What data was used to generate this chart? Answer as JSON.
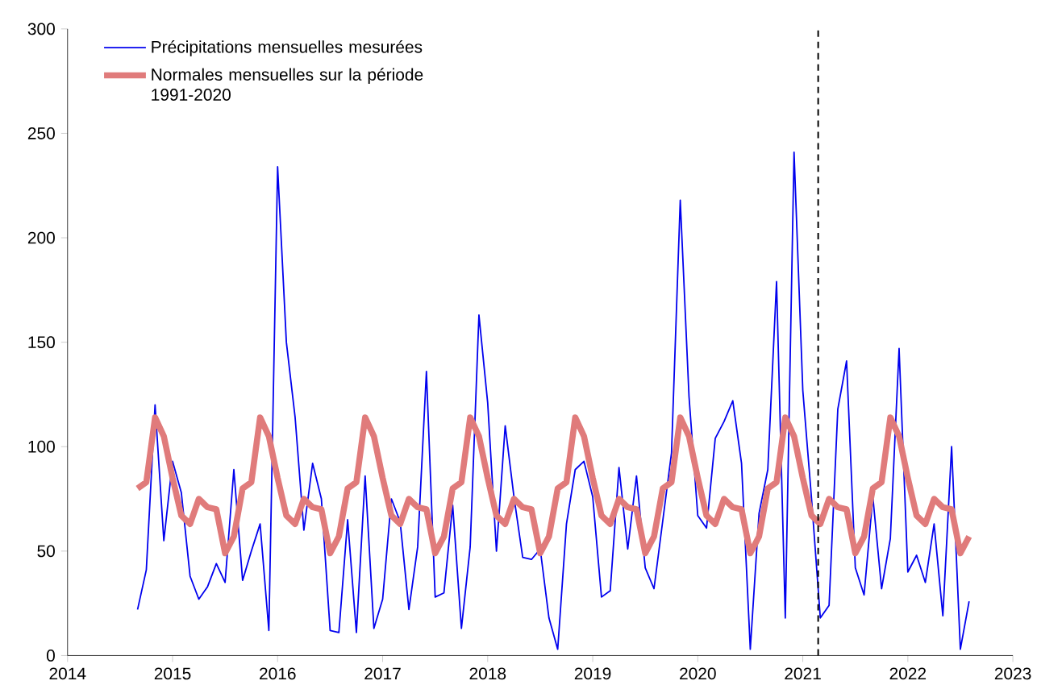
{
  "chart_data": {
    "type": "line",
    "x": [
      "2014-09",
      "2014-10",
      "2014-11",
      "2014-12",
      "2015-01",
      "2015-02",
      "2015-03",
      "2015-04",
      "2015-05",
      "2015-06",
      "2015-07",
      "2015-08",
      "2015-09",
      "2015-10",
      "2015-11",
      "2015-12",
      "2016-01",
      "2016-02",
      "2016-03",
      "2016-04",
      "2016-05",
      "2016-06",
      "2016-07",
      "2016-08",
      "2016-09",
      "2016-10",
      "2016-11",
      "2016-12",
      "2017-01",
      "2017-02",
      "2017-03",
      "2017-04",
      "2017-05",
      "2017-06",
      "2017-07",
      "2017-08",
      "2017-09",
      "2017-10",
      "2017-11",
      "2017-12",
      "2018-01",
      "2018-02",
      "2018-03",
      "2018-04",
      "2018-05",
      "2018-06",
      "2018-07",
      "2018-08",
      "2018-09",
      "2018-10",
      "2018-11",
      "2018-12",
      "2019-01",
      "2019-02",
      "2019-03",
      "2019-04",
      "2019-05",
      "2019-06",
      "2019-07",
      "2019-08",
      "2019-09",
      "2019-10",
      "2019-11",
      "2019-12",
      "2020-01",
      "2020-02",
      "2020-03",
      "2020-04",
      "2020-05",
      "2020-06",
      "2020-07",
      "2020-08",
      "2020-09",
      "2020-10",
      "2020-11",
      "2020-12",
      "2021-01",
      "2021-02",
      "2021-03",
      "2021-04",
      "2021-05",
      "2021-06",
      "2021-07",
      "2021-08",
      "2021-09",
      "2021-10",
      "2021-11",
      "2021-12",
      "2022-01",
      "2022-02",
      "2022-03",
      "2022-04",
      "2022-05",
      "2022-06",
      "2022-07",
      "2022-08"
    ],
    "series": [
      {
        "name": "Précipitations mensuelles mesurées",
        "color": "#0000ee",
        "values": [
          22,
          41,
          120,
          55,
          93,
          78,
          38,
          27,
          33,
          44,
          35,
          89,
          36,
          50,
          63,
          12,
          234,
          150,
          114,
          60,
          92,
          75,
          12,
          11,
          65,
          11,
          86,
          13,
          27,
          75,
          64,
          22,
          52,
          136,
          28,
          30,
          72,
          13,
          52,
          163,
          121,
          50,
          110,
          76,
          47,
          46,
          51,
          18,
          3,
          63,
          89,
          93,
          76,
          28,
          31,
          90,
          51,
          86,
          42,
          32,
          null,
          97,
          218,
          124,
          67,
          61,
          104,
          112,
          122,
          92,
          3,
          68,
          89,
          179,
          18,
          241,
          127,
          75,
          18,
          24,
          118,
          141,
          42,
          29,
          76,
          32,
          56,
          147,
          40,
          48,
          35,
          63,
          19,
          100,
          3,
          26
        ]
      },
      {
        "name": "Normales mensuelles sur la période 1991-2020",
        "color": "#e07b7b",
        "values": [
          80,
          83,
          114,
          105,
          85,
          67,
          63,
          75,
          71,
          70,
          49,
          57,
          80,
          83,
          114,
          105,
          85,
          67,
          63,
          75,
          71,
          70,
          49,
          57,
          80,
          83,
          114,
          105,
          85,
          67,
          63,
          75,
          71,
          70,
          49,
          57,
          80,
          83,
          114,
          105,
          85,
          67,
          63,
          75,
          71,
          70,
          49,
          57,
          80,
          83,
          114,
          105,
          85,
          67,
          63,
          75,
          71,
          70,
          49,
          57,
          80,
          83,
          114,
          105,
          85,
          67,
          63,
          75,
          71,
          70,
          49,
          57,
          80,
          83,
          114,
          105,
          85,
          67,
          63,
          75,
          71,
          70,
          49,
          57,
          80,
          83,
          114,
          105,
          85,
          67,
          63,
          75,
          71,
          70,
          49,
          57
        ]
      }
    ],
    "xlim": [
      "2014",
      "2023"
    ],
    "xticks": [
      "2014",
      "2015",
      "2016",
      "2017",
      "2018",
      "2019",
      "2020",
      "2021",
      "2022",
      "2023"
    ],
    "ylim": [
      0,
      300
    ],
    "yticks": [
      0,
      50,
      100,
      150,
      200,
      250,
      300
    ],
    "ref_lines": [
      {
        "axis": "x",
        "value": "2021-02-24",
        "color": "#000000",
        "line_style": "dashed"
      }
    ],
    "legend": "top left",
    "grid": false,
    "marker": "none",
    "line_style": "solid"
  }
}
